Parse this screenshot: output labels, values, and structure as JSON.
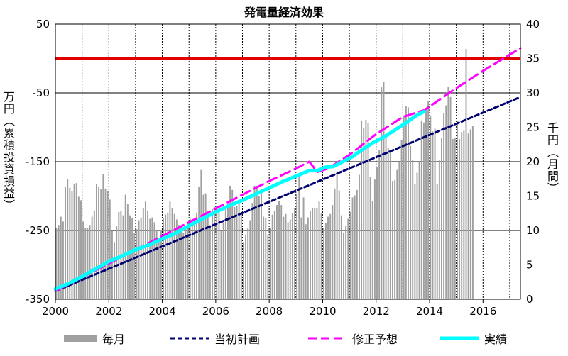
{
  "chart_data": {
    "type": "bar+line",
    "title": "発電量経済効果",
    "ylabel_left": "万円（累積投資損益）",
    "ylabel_right": "千円（月間）",
    "x_ticks": [
      "2000",
      "2002",
      "2004",
      "2006",
      "2008",
      "2010",
      "2012",
      "2014",
      "2016"
    ],
    "xlim": [
      2000,
      2017.4
    ],
    "y_left_ticks": [
      "50",
      "-50",
      "-150",
      "-250",
      "-350"
    ],
    "y_left_lim": [
      -350,
      50
    ],
    "y_right_ticks": [
      "40",
      "35",
      "30",
      "25",
      "20",
      "15",
      "10",
      "5",
      "0"
    ],
    "y_right_lim": [
      0,
      40
    ],
    "reference_line": {
      "axis": "left",
      "value": 0,
      "color": "#e00000"
    },
    "monthly_bars": {
      "name": "毎月",
      "axis": "right",
      "color": "#a0a0a0",
      "start": 2000.04,
      "step": 0.0833,
      "values": [
        10.3,
        10.8,
        12,
        11.3,
        16.4,
        17.5,
        16.2,
        15.7,
        16.8,
        16.9,
        14.9,
        14.4,
        11.3,
        10.4,
        10.3,
        10.8,
        12,
        12.9,
        16.7,
        16.3,
        16,
        18.2,
        16.1,
        15.7,
        14.5,
        9.9,
        8.3,
        10.6,
        12.7,
        12.8,
        12.2,
        15.2,
        13.8,
        12.2,
        11.8,
        9.6,
        10.2,
        11.5,
        11.8,
        13.2,
        14.2,
        12.9,
        11.7,
        11.9,
        11.2,
        10.1,
        8.6,
        10.1,
        11.8,
        12.3,
        12.6,
        14.2,
        13.3,
        12.4,
        11.6,
        10.8,
        10.6,
        9.6,
        10.6,
        11.1,
        11.7,
        11.4,
        11.2,
        12.6,
        16.3,
        18.8,
        15.2,
        15.4,
        12.8,
        10.8,
        13.1,
        13.4,
        13.5,
        12.9,
        9.9,
        11.1,
        13.5,
        13.9,
        16.5,
        15.9,
        13.4,
        13.5,
        13.9,
        12.7,
        8.3,
        9.3,
        10.4,
        11.5,
        14,
        16.5,
        16.5,
        15,
        15.4,
        12,
        11.8,
        9.4,
        10.4,
        12.3,
        12.9,
        13.7,
        14.3,
        13.7,
        12,
        12.4,
        11.2,
        11.6,
        12.5,
        13.2,
        15.3,
        18,
        11.9,
        14.8,
        10.9,
        11.9,
        12.8,
        13.2,
        13.3,
        13.2,
        14.2,
        12.5,
        10.3,
        11.1,
        12,
        12.4,
        13.7,
        16.1,
        18.3,
        15.8,
        12.2,
        9.7,
        10.7,
        11.7,
        12.7,
        14.8,
        15.1,
        15.9,
        18.1,
        25.9,
        24.9,
        26.1,
        25.6,
        17.8,
        14.3,
        17.4,
        19.2,
        21.7,
        30.8,
        31.6,
        23.4,
        22,
        21.4,
        17.2,
        17.3,
        18.8,
        20,
        23.1,
        26.7,
        28.1,
        27.9,
        22.3,
        20.3,
        16.8,
        18.4,
        19.9,
        26,
        25.7,
        27.5,
        28.8,
        26.7,
        24.4,
        24.8,
        16.8,
        20.2,
        23.4,
        27.1,
        28.2,
        30.9,
        29.4,
        23.3,
        23.5,
        26,
        23.3,
        24.3,
        24.5,
        36.4,
        24.1,
        24.7,
        25.2
      ]
    },
    "series": [
      {
        "name": "当初計画",
        "axis": "left",
        "style": "dashed",
        "color": "#000070",
        "points": [
          [
            2000,
            -338
          ],
          [
            2017.4,
            -56
          ]
        ]
      },
      {
        "name": "修正予想",
        "axis": "left",
        "style": "dashed",
        "color": "#ff00ff",
        "points": [
          [
            2000,
            -338
          ],
          [
            2001,
            -318
          ],
          [
            2002,
            -298
          ],
          [
            2003,
            -278
          ],
          [
            2004,
            -258
          ],
          [
            2005,
            -238
          ],
          [
            2006,
            -218
          ],
          [
            2007,
            -198
          ],
          [
            2008,
            -178
          ],
          [
            2009,
            -160
          ],
          [
            2009.5,
            -150
          ],
          [
            2009.8,
            -165
          ],
          [
            2010.2,
            -160
          ],
          [
            2011,
            -140
          ],
          [
            2012,
            -110
          ],
          [
            2013,
            -85
          ],
          [
            2013.8,
            -75
          ],
          [
            2015,
            -43
          ],
          [
            2016,
            -18
          ],
          [
            2017.4,
            15
          ]
        ]
      },
      {
        "name": "実績",
        "axis": "left",
        "style": "solid",
        "color": "#00ffff",
        "points": [
          [
            2000,
            -335
          ],
          [
            2000.5,
            -327
          ],
          [
            2001,
            -317
          ],
          [
            2001.5,
            -306
          ],
          [
            2002,
            -295
          ],
          [
            2002.5,
            -287
          ],
          [
            2003,
            -278
          ],
          [
            2003.5,
            -271
          ],
          [
            2004,
            -262
          ],
          [
            2004.5,
            -254
          ],
          [
            2005,
            -243
          ],
          [
            2005.5,
            -233
          ],
          [
            2006,
            -223
          ],
          [
            2006.5,
            -214
          ],
          [
            2007,
            -206
          ],
          [
            2007.5,
            -197
          ],
          [
            2008,
            -188
          ],
          [
            2008.5,
            -179
          ],
          [
            2009,
            -171
          ],
          [
            2009.5,
            -163
          ],
          [
            2009.8,
            -163
          ],
          [
            2010.1,
            -158
          ],
          [
            2010.4,
            -157
          ],
          [
            2010.8,
            -149
          ],
          [
            2011.1,
            -143
          ],
          [
            2011.5,
            -132
          ],
          [
            2011.9,
            -122
          ],
          [
            2012.3,
            -114
          ],
          [
            2012.7,
            -104
          ],
          [
            2013.1,
            -94
          ],
          [
            2013.5,
            -83
          ],
          [
            2013.8,
            -77
          ]
        ]
      }
    ],
    "legend": {
      "items": [
        {
          "label": "毎月",
          "style": "bar",
          "color": "#a0a0a0"
        },
        {
          "label": "当初計画",
          "style": "dashed",
          "color": "#000070"
        },
        {
          "label": "修正予想",
          "style": "dashed",
          "color": "#ff00ff"
        },
        {
          "label": "実績",
          "style": "solid",
          "color": "#00ffff"
        }
      ]
    }
  }
}
